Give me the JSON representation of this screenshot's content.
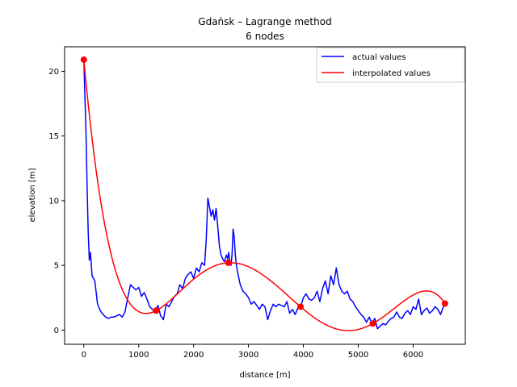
{
  "chart_data": {
    "type": "line",
    "title_line1": "Gdańsk – Lagrange method",
    "title_line2": "6 nodes",
    "xlabel": "distance [m]",
    "ylabel": "elevation [m]",
    "xlim": [
      -350,
      6950
    ],
    "ylim": [
      -1.1,
      21.9
    ],
    "xticks": [
      0,
      1000,
      2000,
      3000,
      4000,
      5000,
      6000
    ],
    "yticks": [
      0,
      5,
      10,
      15,
      20
    ],
    "grid": false,
    "legend_position": "top-right",
    "series": [
      {
        "name": "actual values",
        "color": "#0000ff",
        "x": [
          0,
          20,
          40,
          60,
          80,
          100,
          120,
          150,
          200,
          250,
          300,
          350,
          400,
          450,
          500,
          550,
          600,
          650,
          700,
          750,
          800,
          850,
          900,
          950,
          1000,
          1050,
          1100,
          1150,
          1200,
          1250,
          1300,
          1350,
          1400,
          1450,
          1500,
          1550,
          1600,
          1650,
          1700,
          1750,
          1800,
          1850,
          1900,
          1950,
          2000,
          2050,
          2100,
          2150,
          2200,
          2230,
          2260,
          2290,
          2320,
          2350,
          2380,
          2410,
          2440,
          2470,
          2500,
          2530,
          2560,
          2600,
          2620,
          2640,
          2660,
          2680,
          2700,
          2720,
          2740,
          2760,
          2780,
          2800,
          2850,
          2900,
          2950,
          3000,
          3050,
          3100,
          3150,
          3200,
          3250,
          3300,
          3350,
          3400,
          3450,
          3500,
          3550,
          3600,
          3650,
          3700,
          3750,
          3800,
          3850,
          3900,
          3950,
          4000,
          4050,
          4100,
          4150,
          4200,
          4250,
          4300,
          4350,
          4400,
          4450,
          4500,
          4550,
          4600,
          4650,
          4700,
          4750,
          4800,
          4850,
          4900,
          4950,
          5000,
          5050,
          5100,
          5150,
          5200,
          5250,
          5300,
          5350,
          5400,
          5450,
          5500,
          5550,
          5600,
          5650,
          5700,
          5750,
          5800,
          5850,
          5900,
          5950,
          6000,
          6050,
          6100,
          6150,
          6200,
          6250,
          6300,
          6350,
          6400,
          6450,
          6500,
          6550,
          6580
        ],
        "y": [
          20.9,
          18.0,
          15.2,
          11.0,
          7.5,
          5.4,
          6.0,
          4.2,
          3.8,
          2.0,
          1.5,
          1.2,
          1.0,
          0.9,
          1.0,
          1.0,
          1.1,
          1.2,
          1.0,
          1.4,
          2.5,
          3.5,
          3.3,
          3.1,
          3.3,
          2.6,
          2.9,
          2.4,
          1.8,
          1.6,
          1.5,
          1.9,
          1.1,
          0.8,
          2.0,
          1.8,
          2.2,
          2.6,
          2.8,
          3.5,
          3.2,
          4.0,
          4.3,
          4.5,
          4.0,
          4.8,
          4.5,
          5.2,
          5.0,
          7.0,
          10.2,
          9.5,
          8.8,
          9.3,
          8.5,
          9.4,
          8.0,
          6.5,
          5.8,
          5.5,
          5.3,
          5.8,
          5.5,
          6.0,
          5.3,
          5.0,
          5.8,
          7.8,
          7.2,
          5.8,
          5.0,
          4.5,
          3.5,
          3.0,
          2.8,
          2.5,
          2.0,
          2.2,
          1.9,
          1.6,
          2.0,
          1.8,
          0.8,
          1.5,
          2.0,
          1.8,
          2.0,
          1.9,
          1.8,
          2.2,
          1.3,
          1.6,
          1.2,
          1.7,
          1.8,
          2.5,
          2.8,
          2.4,
          2.3,
          2.5,
          3.0,
          2.2,
          3.2,
          3.8,
          2.8,
          4.2,
          3.5,
          4.8,
          3.5,
          3.0,
          2.8,
          3.0,
          2.4,
          2.2,
          1.8,
          1.5,
          1.2,
          1.0,
          0.6,
          1.0,
          0.5,
          0.9,
          0.1,
          0.3,
          0.5,
          0.4,
          0.7,
          0.9,
          1.0,
          1.4,
          1.0,
          0.9,
          1.3,
          1.5,
          1.2,
          1.8,
          1.6,
          2.4,
          1.2,
          1.5,
          1.7,
          1.3,
          1.5,
          1.8,
          1.6,
          1.2,
          1.8,
          2.0
        ]
      },
      {
        "name": "interpolated values",
        "color": "#ff0000",
        "nodes_x": [
          0,
          1316,
          2632,
          3948,
          5264,
          6580
        ],
        "nodes_y": [
          20.9,
          1.5,
          5.2,
          1.8,
          0.5,
          2.05
        ]
      }
    ]
  }
}
